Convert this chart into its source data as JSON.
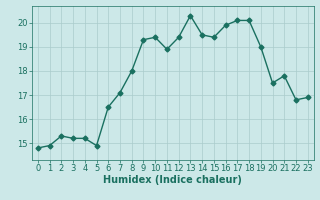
{
  "x": [
    0,
    1,
    2,
    3,
    4,
    5,
    6,
    7,
    8,
    9,
    10,
    11,
    12,
    13,
    14,
    15,
    16,
    17,
    18,
    19,
    20,
    21,
    22,
    23
  ],
  "y": [
    14.8,
    14.9,
    15.3,
    15.2,
    15.2,
    14.9,
    16.5,
    17.1,
    18.0,
    19.3,
    19.4,
    18.9,
    19.4,
    20.3,
    19.5,
    19.4,
    19.9,
    20.1,
    20.1,
    19.0,
    17.5,
    17.8,
    16.8,
    16.9
  ],
  "line_color": "#1a7060",
  "marker": "D",
  "markersize": 2.5,
  "linewidth": 1.0,
  "bg_color": "#cce8e8",
  "grid_color": "#aacccc",
  "xlabel": "Humidex (Indice chaleur)",
  "xlabel_fontsize": 7,
  "tick_fontsize": 6,
  "yticks": [
    15,
    16,
    17,
    18,
    19,
    20
  ],
  "ylim": [
    14.3,
    20.7
  ],
  "xlim": [
    -0.5,
    23.5
  ],
  "xticks": [
    0,
    1,
    2,
    3,
    4,
    5,
    6,
    7,
    8,
    9,
    10,
    11,
    12,
    13,
    14,
    15,
    16,
    17,
    18,
    19,
    20,
    21,
    22,
    23
  ]
}
